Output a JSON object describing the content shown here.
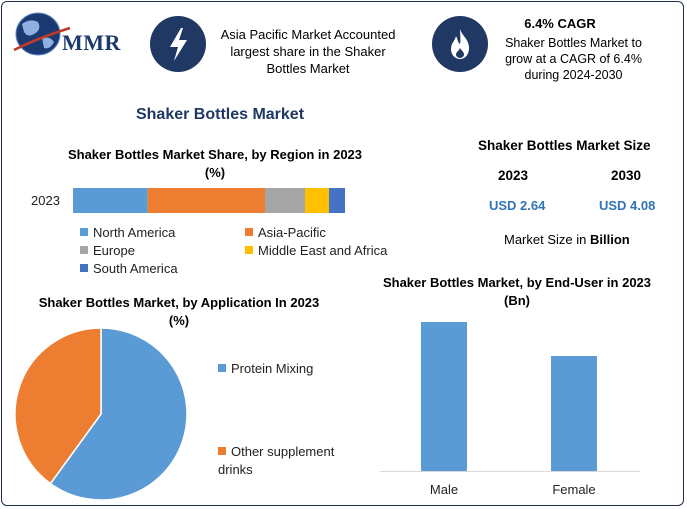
{
  "brand": {
    "name": "MMR"
  },
  "header": {
    "stat1": {
      "icon": "lightning-bolt-icon",
      "text": "Asia Pacific Market Accounted largest share in the Shaker Bottles Market"
    },
    "stat2": {
      "icon": "flame-icon",
      "title": "6.4% CAGR",
      "text": "Shaker Bottles Market to grow at a CAGR of 6.4% during 2024-2030"
    }
  },
  "main_title": "Shaker Bottles Market",
  "market_size": {
    "title": "Shaker Bottles Market Size",
    "years": [
      "2023",
      "2030"
    ],
    "values": [
      "USD 2.64",
      "USD 4.08"
    ],
    "note_prefix": "Market Size in ",
    "note_unit": "Billion"
  },
  "colors": {
    "navy": "#1f3864",
    "blue": "#5b9bd5",
    "orange": "#ed7d31",
    "gray": "#a5a5a5",
    "gold": "#ffc000",
    "darkblue": "#4472c4",
    "value_blue": "#2f74b5"
  },
  "chart_data": [
    {
      "type": "bar",
      "orientation": "horizontal-stacked",
      "title": "Shaker Bottles Market Share, by Region in 2023 (%)",
      "categories": [
        "2023"
      ],
      "series": [
        {
          "name": "North America",
          "values": [
            28
          ]
        },
        {
          "name": "Asia-Pacific",
          "values": [
            44
          ]
        },
        {
          "name": "Europe",
          "values": [
            15
          ]
        },
        {
          "name": "Middle East and Africa",
          "values": [
            9
          ]
        },
        {
          "name": "South America",
          "values": [
            6
          ]
        }
      ],
      "legend": "bottom"
    },
    {
      "type": "pie",
      "title": "Shaker Bottles Market, by Application In 2023 (%)",
      "labels": [
        "Protein Mixing",
        "Other supplement drinks"
      ],
      "values": [
        60,
        40
      ],
      "legend": "right"
    },
    {
      "type": "bar",
      "title": "Shaker Bottles Market, by End-User in 2023 (Bn)",
      "categories": [
        "Male",
        "Female"
      ],
      "values": [
        1.49,
        1.15
      ],
      "ylim": [
        0,
        1.6
      ]
    }
  ]
}
